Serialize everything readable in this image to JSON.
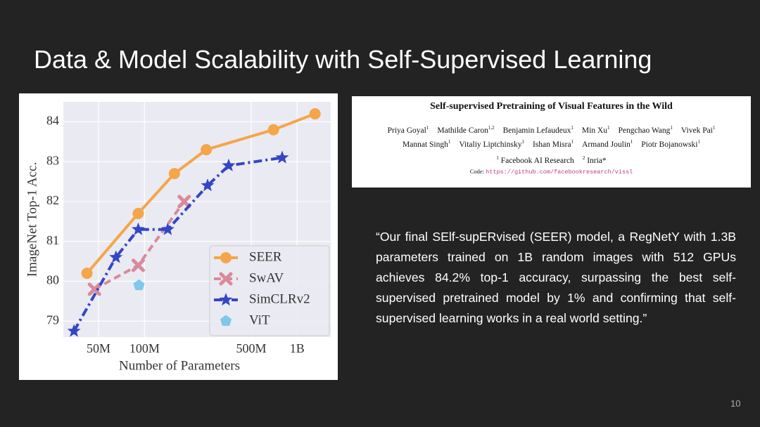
{
  "title": "Data & Model Scalability with Self-Supervised Learning",
  "chart_data": {
    "type": "line",
    "x_label": "Number of Parameters",
    "y_label": "ImageNet Top-1 Acc.",
    "xlim": [
      29400000,
      1660000000
    ],
    "ylim": [
      78.6,
      84.5
    ],
    "x_scale": "log",
    "grid": true,
    "legend": "lower right",
    "xticks": [
      {
        "value": 50000000,
        "label": "50M"
      },
      {
        "value": 100000000,
        "label": "100M"
      },
      {
        "value": 500000000,
        "label": "500M"
      },
      {
        "value": 1000000000,
        "label": "1B"
      }
    ],
    "yticks": [
      79,
      80,
      81,
      82,
      83,
      84
    ],
    "series": [
      {
        "name": "SEER",
        "color": "#f5a54a",
        "marker": "circle",
        "line": "solid",
        "x": [
          42000000,
          91000000,
          157000000,
          254000000,
          700000000,
          1310000000
        ],
        "values": [
          80.2,
          81.7,
          82.7,
          83.3,
          83.8,
          84.2
        ]
      },
      {
        "name": "SwAV",
        "color": "#d98a9a",
        "marker": "x",
        "line": "dashed",
        "x": [
          47000000,
          91000000,
          182000000
        ],
        "values": [
          79.8,
          80.4,
          82.0
        ]
      },
      {
        "name": "SimCLRv2",
        "color": "#3346c8",
        "marker": "star",
        "line": "dashdot",
        "x": [
          34500000,
          65000000,
          91000000,
          142000000,
          259000000,
          356000000,
          798000000
        ],
        "values": [
          78.75,
          80.6,
          81.3,
          81.3,
          82.4,
          82.9,
          83.1
        ]
      },
      {
        "name": "ViT",
        "color": "#7ec8ea",
        "marker": "pentagon",
        "line": "none",
        "x": [
          92000000
        ],
        "values": [
          79.9
        ]
      }
    ]
  },
  "paper": {
    "title": "Self-supervised Pretraining of Visual Features in the Wild",
    "authors": [
      [
        {
          "name": "Priya Goyal",
          "sup": "1"
        },
        {
          "name": "Mathilde Caron",
          "sup": "1,2"
        },
        {
          "name": "Benjamin Lefaudeux",
          "sup": "1"
        },
        {
          "name": "Min Xu",
          "sup": "1"
        },
        {
          "name": "Pengchao Wang",
          "sup": "1"
        },
        {
          "name": "Vivek Pai",
          "sup": "1"
        }
      ],
      [
        {
          "name": "Mannat Singh",
          "sup": "1"
        },
        {
          "name": "Vitaliy Liptchinsky",
          "sup": "1"
        },
        {
          "name": "Ishan Misra",
          "sup": "1"
        },
        {
          "name": "Armand Joulin",
          "sup": "1"
        },
        {
          "name": "Piotr Bojanowski",
          "sup": "1"
        }
      ]
    ],
    "affiliations": [
      {
        "sup": "1",
        "name": "Facebook AI Research"
      },
      {
        "sup": "2",
        "name": "Inria*"
      }
    ],
    "code_label": "Code:",
    "code_url": "https://github.com/facebookresearch/vissl"
  },
  "quote": "“Our final SElf-supERvised (SEER) model, a RegNetY with 1.3B parameters trained on 1B random images with 512 GPUs achieves 84.2% top-1 accuracy, surpassing the best self-supervised pretrained model by 1% and confirming that self-supervised learning works in a real world setting.”",
  "page_number": "10"
}
